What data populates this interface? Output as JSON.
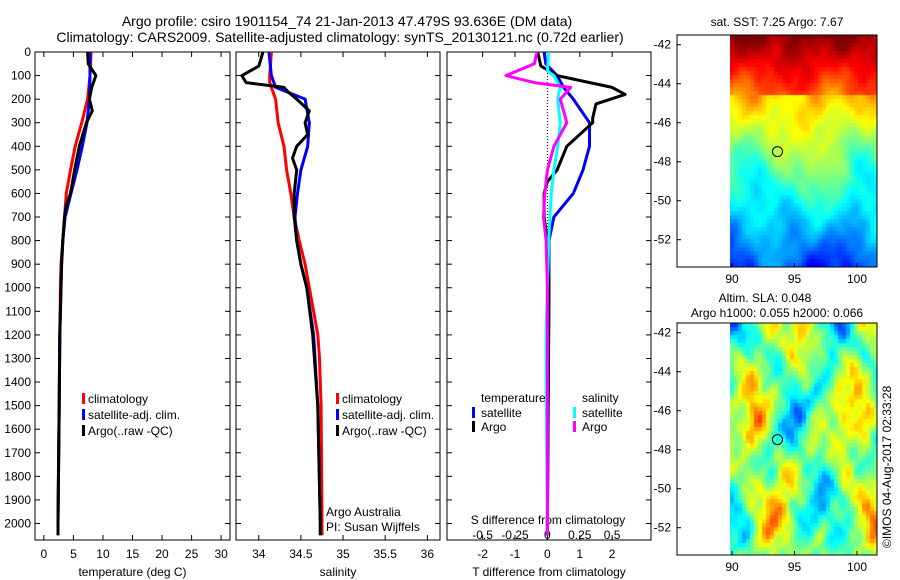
{
  "title": {
    "line1": "Argo profile: csiro 1901154_74 21-Jan-2013 47.479S 93.636E (DM data)",
    "line2": "Climatology: CARS2009. Satellite-adjusted climatology: synTS_20130121.nc (0.72d earlier)"
  },
  "colors": {
    "climatology": "#ff0000",
    "satellite": "#0000ff",
    "argo": "#000000",
    "sal_satellite": "#00ffff",
    "sal_argo": "#ff00ff"
  },
  "chart_data": [
    {
      "type": "line",
      "name": "temperature",
      "xlabel": "temperature (deg C)",
      "xlim": [
        -1.5,
        31.5
      ],
      "ylim": [
        0,
        2070
      ],
      "y_reversed": true,
      "xticks": [
        0,
        5,
        10,
        15,
        20,
        25,
        30
      ],
      "yticks": [
        0,
        100,
        200,
        300,
        400,
        500,
        600,
        700,
        800,
        900,
        1000,
        1100,
        1200,
        1300,
        1400,
        1500,
        1600,
        1700,
        1800,
        1900,
        2000
      ],
      "legend": [
        "climatology",
        "satellite-adj. clim.",
        "Argo(..raw -QC)"
      ],
      "series": [
        {
          "name": "climatology",
          "color": "#ff0000",
          "depth": [
            0,
            100,
            200,
            300,
            400,
            500,
            600,
            700,
            800,
            900,
            1000,
            1200,
            1500,
            1700,
            2000,
            2050
          ],
          "values": [
            8.0,
            7.8,
            7.4,
            6.4,
            5.3,
            4.5,
            3.8,
            3.5,
            3.2,
            2.9,
            2.8,
            2.7,
            2.6,
            2.5,
            2.4,
            2.4
          ]
        },
        {
          "name": "satellite-adj. clim.",
          "color": "#0000ff",
          "depth": [
            0,
            100,
            200,
            300,
            400,
            500,
            600,
            700,
            800,
            900,
            1000,
            1200,
            1500,
            2000,
            2050
          ],
          "values": [
            7.8,
            7.8,
            7.7,
            7.3,
            6.5,
            5.6,
            4.6,
            3.6,
            3.2,
            3.0,
            2.9,
            2.7,
            2.6,
            2.4,
            2.4
          ]
        },
        {
          "name": "Argo(..raw -QC)",
          "color": "#000000",
          "depth": [
            0,
            50,
            100,
            150,
            200,
            250,
            300,
            400,
            500,
            600,
            650,
            700,
            800,
            900,
            1000,
            1200,
            1500,
            2000,
            2050
          ],
          "values": [
            7.4,
            7.5,
            8.8,
            8.1,
            7.7,
            8.2,
            7.2,
            6.0,
            5.2,
            4.5,
            3.8,
            3.5,
            3.2,
            3.0,
            2.9,
            2.7,
            2.6,
            2.4,
            2.4
          ]
        }
      ]
    },
    {
      "type": "line",
      "name": "salinity",
      "xlabel": "salinity",
      "xlim": [
        33.73,
        36.15
      ],
      "ylim": [
        0,
        2070
      ],
      "y_reversed": true,
      "xticks": [
        34,
        34.5,
        35,
        35.5,
        36
      ],
      "legend": [
        "climatology",
        "satellite-adj. clim.",
        "Argo(..raw -QC)"
      ],
      "annotation": [
        "Argo Australia",
        "PI: Susan Wijffels"
      ],
      "series": [
        {
          "name": "climatology",
          "color": "#ff0000",
          "depth": [
            0,
            100,
            130,
            200,
            300,
            400,
            500,
            600,
            700,
            800,
            900,
            1000,
            1100,
            1200,
            1300,
            1500,
            2000,
            2050
          ],
          "values": [
            34.15,
            34.13,
            34.13,
            34.2,
            34.23,
            34.3,
            34.33,
            34.38,
            34.42,
            34.48,
            34.55,
            34.6,
            34.65,
            34.7,
            34.72,
            34.74,
            34.75,
            34.75
          ]
        },
        {
          "name": "satellite-adj. clim.",
          "color": "#0000ff",
          "depth": [
            0,
            100,
            150,
            200,
            300,
            400,
            500,
            600,
            700,
            800,
            900,
            1000,
            1200,
            1500,
            2000,
            2050
          ],
          "values": [
            34.12,
            34.15,
            34.2,
            34.55,
            34.6,
            34.58,
            34.5,
            34.46,
            34.43,
            34.45,
            34.5,
            34.57,
            34.65,
            34.7,
            34.73,
            34.73
          ]
        },
        {
          "name": "Argo(..raw -QC)",
          "color": "#000000",
          "depth": [
            0,
            60,
            100,
            130,
            150,
            170,
            200,
            250,
            300,
            350,
            400,
            450,
            500,
            600,
            700,
            800,
            900,
            1000,
            1200,
            1500,
            2000,
            2050
          ],
          "values": [
            34.05,
            34.0,
            33.8,
            33.85,
            34.3,
            34.35,
            34.45,
            34.6,
            34.55,
            34.58,
            34.45,
            34.4,
            34.45,
            34.42,
            34.42,
            34.45,
            34.5,
            34.57,
            34.64,
            34.7,
            34.73,
            34.73
          ]
        }
      ]
    },
    {
      "type": "line",
      "name": "difference",
      "xlabel": "T difference from climatology",
      "x2label": "S difference from climatology",
      "xlim": [
        -3.1,
        3.2
      ],
      "xticks": [
        -2,
        -1,
        0,
        1,
        2
      ],
      "s_xticks": [
        "-0.5",
        "-0.25",
        "0",
        "0.25",
        "0.5"
      ],
      "s_tick_values": [
        -0.5,
        -0.25,
        0,
        0.25,
        0.5
      ],
      "s_to_t_scale": 4,
      "ylim": [
        0,
        2070
      ],
      "y_reversed": true,
      "legend_titles": {
        "temperature": "temperature",
        "salinity": "salinity"
      },
      "legend": {
        "t_sat": "satellite",
        "t_argo": "Argo",
        "s_sat": "satellite",
        "s_argo": "Argo"
      },
      "series": [
        {
          "name": "temperature satellite",
          "color": "#0000ff",
          "units": "T",
          "depth": [
            0,
            50,
            100,
            150,
            200,
            300,
            400,
            500,
            600,
            700,
            800,
            1000,
            1500,
            2000,
            2050
          ],
          "values": [
            -0.1,
            -0.05,
            0.3,
            0.5,
            0.8,
            1.3,
            1.3,
            1.1,
            0.8,
            0.2,
            0.05,
            0.05,
            0.02,
            0.0,
            0.0
          ]
        },
        {
          "name": "temperature Argo",
          "color": "#000000",
          "units": "T",
          "depth": [
            0,
            60,
            100,
            150,
            180,
            220,
            280,
            300,
            400,
            500,
            550,
            600,
            700,
            800,
            1000,
            2000,
            2050
          ],
          "values": [
            -0.3,
            -0.2,
            0.3,
            2.0,
            2.4,
            1.5,
            1.4,
            1.4,
            0.6,
            0.3,
            0.0,
            -0.1,
            -0.1,
            0.0,
            0.05,
            0.0,
            0.0
          ]
        },
        {
          "name": "salinity satellite",
          "color": "#00ffff",
          "units": "S",
          "depth": [
            0,
            80,
            100,
            150,
            200,
            300,
            400,
            500,
            600,
            700,
            800,
            1000,
            1200,
            1400,
            2000,
            2050
          ],
          "values": [
            0.01,
            0.0,
            0.05,
            0.1,
            0.08,
            0.1,
            0.08,
            0.05,
            0.03,
            0.02,
            0.01,
            0.0,
            -0.01,
            -0.01,
            0.0,
            0.0
          ]
        },
        {
          "name": "salinity Argo",
          "color": "#ff00ff",
          "units": "S",
          "depth": [
            0,
            50,
            100,
            130,
            150,
            200,
            300,
            400,
            500,
            600,
            700,
            800,
            1000,
            2000,
            2050
          ],
          "values": [
            -0.08,
            -0.1,
            -0.32,
            -0.1,
            0.18,
            0.1,
            0.15,
            0.05,
            0.0,
            -0.02,
            -0.03,
            -0.01,
            0.0,
            0.0,
            0.0
          ]
        }
      ]
    },
    {
      "type": "heatmap",
      "name": "sst-map",
      "title": "sat. SST: 7.25  Argo: 7.67",
      "xlim": [
        85.6,
        101.6
      ],
      "ylim": [
        -53.4,
        -41.5
      ],
      "xticks": [
        "90",
        "95",
        "100"
      ],
      "xtick_values": [
        90,
        95,
        100
      ],
      "yticks": [
        "-42",
        "-44",
        "-46",
        "-48",
        "-50",
        "-52"
      ],
      "ytick_values": [
        -42,
        -44,
        -46,
        -48,
        -50,
        -52
      ],
      "data_lon_start": 90,
      "marker": {
        "lon": 93.636,
        "lat": -47.479
      }
    },
    {
      "type": "heatmap",
      "name": "sla-map",
      "title1": "Altim. SLA: 0.048",
      "title2": "Argo h1000: 0.055 h2000: 0.066",
      "xlim": [
        85.6,
        101.6
      ],
      "ylim": [
        -53.4,
        -41.5
      ],
      "xticks": [
        "90",
        "95",
        "100"
      ],
      "xtick_values": [
        90,
        95,
        100
      ],
      "yticks": [
        "-42",
        "-44",
        "-46",
        "-48",
        "-50",
        "-52"
      ],
      "ytick_values": [
        -42,
        -44,
        -46,
        -48,
        -50,
        -52
      ],
      "data_lon_start": 90,
      "marker": {
        "lon": 93.636,
        "lat": -47.479
      }
    }
  ],
  "footer": {
    "credit": "©IMOS 04-Aug-2017 02:33:28"
  }
}
